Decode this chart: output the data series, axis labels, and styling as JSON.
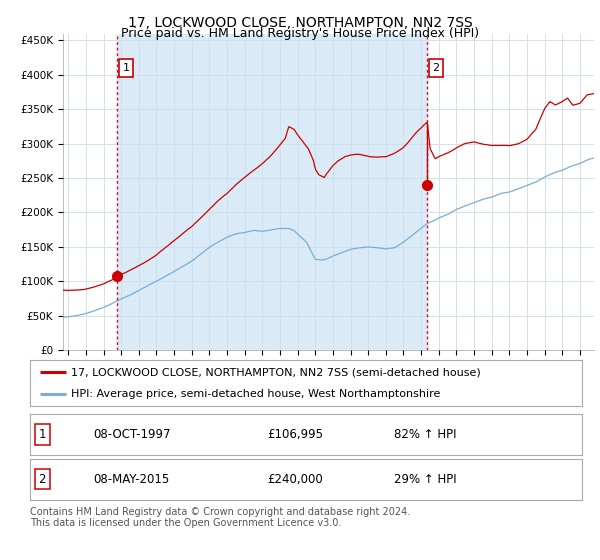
{
  "title": "17, LOCKWOOD CLOSE, NORTHAMPTON, NN2 7SS",
  "subtitle": "Price paid vs. HM Land Registry's House Price Index (HPI)",
  "ylabel_ticks": [
    "£0",
    "£50K",
    "£100K",
    "£150K",
    "£200K",
    "£250K",
    "£300K",
    "£350K",
    "£400K",
    "£450K"
  ],
  "ytick_values": [
    0,
    50000,
    100000,
    150000,
    200000,
    250000,
    300000,
    350000,
    400000,
    450000
  ],
  "ylim": [
    0,
    460000
  ],
  "xlim_start": 1994.7,
  "xlim_end": 2024.8,
  "background_color": "#ffffff",
  "plot_bg_color": "#ffffff",
  "shaded_region_color": "#daeaf7",
  "grid_color": "#ccddee",
  "red_line_color": "#cc0000",
  "blue_line_color": "#7aadd4",
  "point1_x": 1997.77,
  "point1_y": 106995,
  "point2_x": 2015.35,
  "point2_y": 240000,
  "point2_peak_y": 328000,
  "legend_line1": "17, LOCKWOOD CLOSE, NORTHAMPTON, NN2 7SS (semi-detached house)",
  "legend_line2": "HPI: Average price, semi-detached house, West Northamptonshire",
  "table_row1_label": "1",
  "table_row1_date": "08-OCT-1997",
  "table_row1_price": "£106,995",
  "table_row1_hpi": "82% ↑ HPI",
  "table_row2_label": "2",
  "table_row2_date": "08-MAY-2015",
  "table_row2_price": "£240,000",
  "table_row2_hpi": "29% ↑ HPI",
  "footer": "Contains HM Land Registry data © Crown copyright and database right 2024.\nThis data is licensed under the Open Government Licence v3.0.",
  "title_fontsize": 10,
  "subtitle_fontsize": 9,
  "tick_fontsize": 7.5,
  "legend_fontsize": 8,
  "table_fontsize": 8.5,
  "footer_fontsize": 7
}
